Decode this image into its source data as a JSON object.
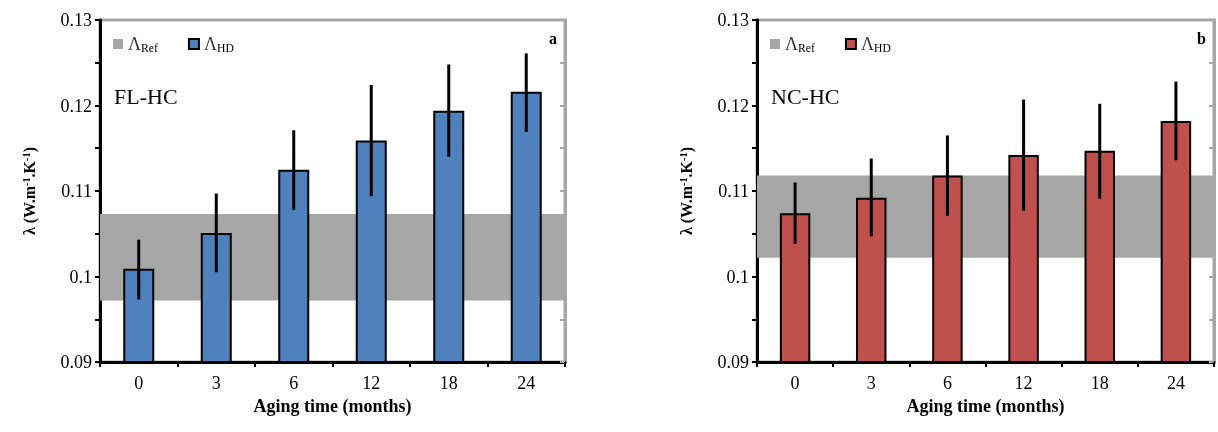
{
  "chart_data": [
    {
      "type": "bar",
      "categories": [
        "0",
        "3",
        "6",
        "12",
        "18",
        "24"
      ],
      "xlabel": "Aging time (months)",
      "ylabel": "λ (W.m$^{-1}$.K$^{-1}$)",
      "series": [
        {
          "name": "Λ$_{HD}$",
          "color": "#4f81bd",
          "values": [
            0.1009,
            0.1051,
            0.1125,
            0.1159,
            0.1194,
            0.1216
          ],
          "errors": [
            [
              0.0973,
              0.1043
            ],
            [
              0.1005,
              0.1097
            ],
            [
              0.1078,
              0.1171
            ],
            [
              0.1094,
              0.1224
            ],
            [
              0.114,
              0.1248
            ],
            [
              0.1169,
              0.1261
            ]
          ]
        }
      ],
      "bands": [
        {
          "axis": "y",
          "from": 0.0972,
          "to": 0.1073,
          "label": "Λ$_{Ref}$",
          "color": "#a6a6a6"
        }
      ],
      "ylim": [
        0.09,
        0.13
      ],
      "yticks": [
        0.09,
        {
          "value": 0.095,
          "label": null
        },
        0.1,
        {
          "value": 0.105,
          "label": null
        },
        0.11,
        {
          "value": 0.115,
          "label": null
        },
        0.12,
        {
          "value": 0.125,
          "label": null
        },
        0.13
      ],
      "legend": "top left",
      "grid": false,
      "annotations": [
        "FL-HC",
        "a"
      ]
    },
    {
      "type": "bar",
      "categories": [
        "0",
        "3",
        "6",
        "12",
        "18",
        "24"
      ],
      "xlabel": "Aging time (months)",
      "ylabel": "λ (W.m$^{-1}$.K$^{-1}$)",
      "series": [
        {
          "name": "Λ$_{HD}$",
          "color": "#c0504d",
          "values": [
            0.1074,
            0.1092,
            0.1118,
            0.1142,
            0.1147,
            0.1182
          ],
          "errors": [
            [
              0.1038,
              0.111
            ],
            [
              0.1047,
              0.1138
            ],
            [
              0.1071,
              0.1165
            ],
            [
              0.1077,
              0.1207
            ],
            [
              0.1091,
              0.1202
            ],
            [
              0.1136,
              0.1228
            ]
          ]
        }
      ],
      "bands": [
        {
          "axis": "y",
          "from": 0.1022,
          "to": 0.1118,
          "label": "Λ$_{Ref}$",
          "color": "#a6a6a6"
        }
      ],
      "ylim": [
        0.09,
        0.13
      ],
      "yticks": [
        0.09,
        {
          "value": 0.095,
          "label": null
        },
        0.1,
        {
          "value": 0.105,
          "label": null
        },
        0.11,
        {
          "value": 0.115,
          "label": null
        },
        0.12,
        {
          "value": 0.125,
          "label": null
        },
        0.13
      ],
      "legend": "top left",
      "grid": false,
      "annotations": [
        "NC-HC",
        "b"
      ]
    }
  ]
}
